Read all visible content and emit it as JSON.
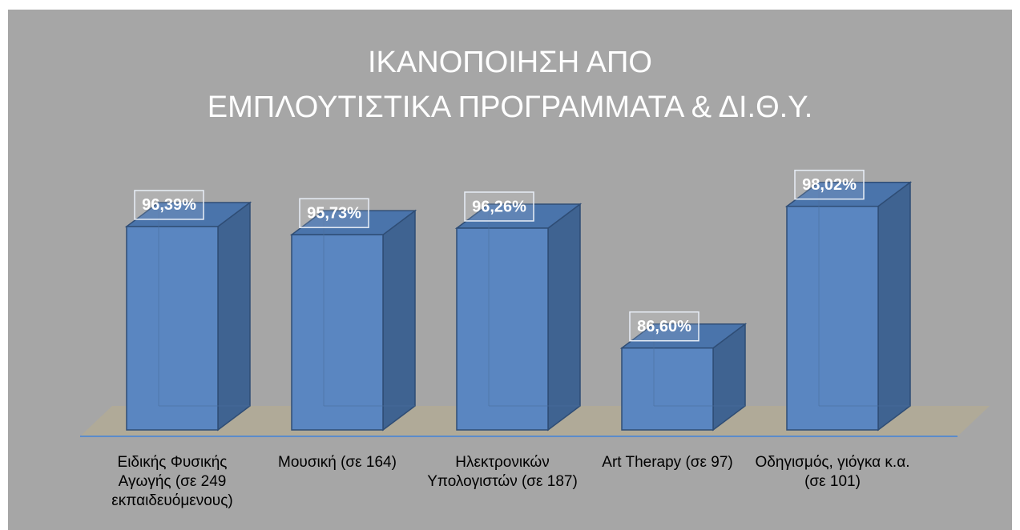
{
  "chart_data": {
    "type": "bar3d",
    "title": "ΙΚΑΝΟΠΟΙΗΣΗ ΑΠΟ\nΕΜΠΛΟΥΤΙΣΤΙΚΑ ΠΡΟΓΡΑΜΜΑΤΑ & ΔΙ.Θ.Υ.",
    "categories": [
      "Ειδικής Φυσικής Αγωγής (σε 249 εκπαιδευόμενους)",
      "Μουσική (σε 164)",
      "Ηλεκτρονικών Υπολογιστών (σε 187)",
      "Art Therapy (σε 97)",
      "Οδηγισμός, γιόγκα κ.α. (σε 101)"
    ],
    "values": [
      96.39,
      95.73,
      96.26,
      86.6,
      98.02
    ],
    "value_labels": [
      "96,39%",
      "95,73%",
      "96,26%",
      "86,60%",
      "98,02%"
    ],
    "color": "#5a86c1",
    "ylim": [
      80,
      100
    ]
  }
}
